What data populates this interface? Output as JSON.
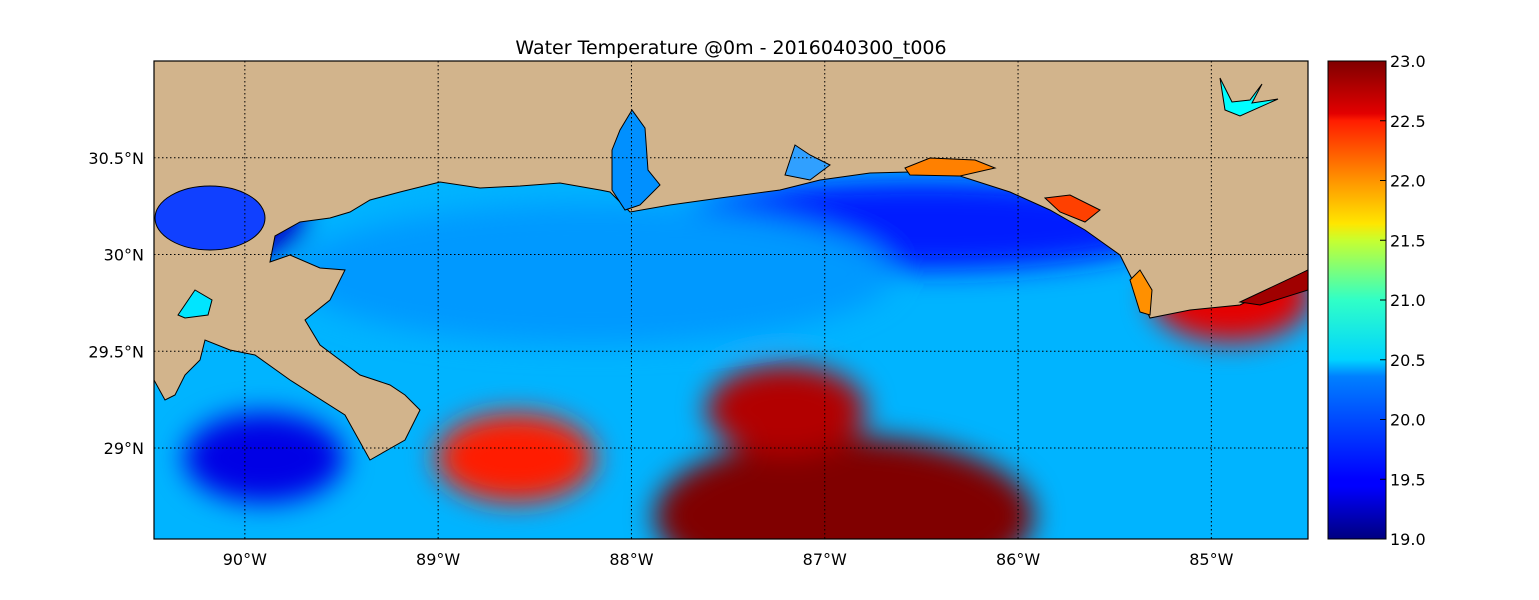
{
  "chart_data": {
    "type": "heatmap",
    "title": "Water Temperature @0m - 2016040300_t006",
    "xlabel": "",
    "ylabel": "",
    "x_ticks": [
      "90°W",
      "89°W",
      "88°W",
      "87°W",
      "86°W",
      "85°W"
    ],
    "x_tick_values": [
      -90,
      -89,
      -88,
      -87,
      -86,
      -85
    ],
    "y_ticks": [
      "30.5°N",
      "30°N",
      "29.5°N",
      "29°N"
    ],
    "y_tick_values": [
      30.5,
      30.0,
      29.5,
      29.0
    ],
    "xlim": [
      -90.47,
      -84.5
    ],
    "ylim": [
      28.53,
      31.0
    ],
    "grid": true,
    "colormap": "jet",
    "colorbar": {
      "vmin": 19.0,
      "vmax": 23.0,
      "tick_labels": [
        "23.0",
        "22.5",
        "22.0",
        "21.5",
        "21.0",
        "20.5",
        "20.0",
        "19.5",
        "19.0"
      ],
      "tick_values": [
        23.0,
        22.5,
        22.0,
        21.5,
        21.0,
        20.5,
        20.0,
        19.5,
        19.0
      ]
    },
    "land_color": "#d2b48c",
    "approximate_field": {
      "note_scale": "values in °C read from colorbar",
      "features": [
        {
          "name": "warm core",
          "lon": -86.9,
          "lat": 28.65,
          "value": 23.0
        },
        {
          "name": "warm tongue",
          "lon": -87.2,
          "lat": 29.2,
          "value": 22.8
        },
        {
          "name": "western warm patch",
          "lon": -88.6,
          "lat": 28.95,
          "value": 22.4
        },
        {
          "name": "cool coastal band",
          "lon": -86.5,
          "lat": 30.15,
          "value": 19.6
        },
        {
          "name": "cool western pool",
          "lon": -89.9,
          "lat": 28.95,
          "value": 19.4
        },
        {
          "name": "lake",
          "lon": -90.1,
          "lat": 30.18,
          "value": 19.3
        },
        {
          "name": "shelf water",
          "lon": -88.2,
          "lat": 29.9,
          "value": 20.1
        },
        {
          "name": "eastern warm patch",
          "lon": -84.9,
          "lat": 29.78,
          "value": 22.6
        }
      ]
    }
  }
}
